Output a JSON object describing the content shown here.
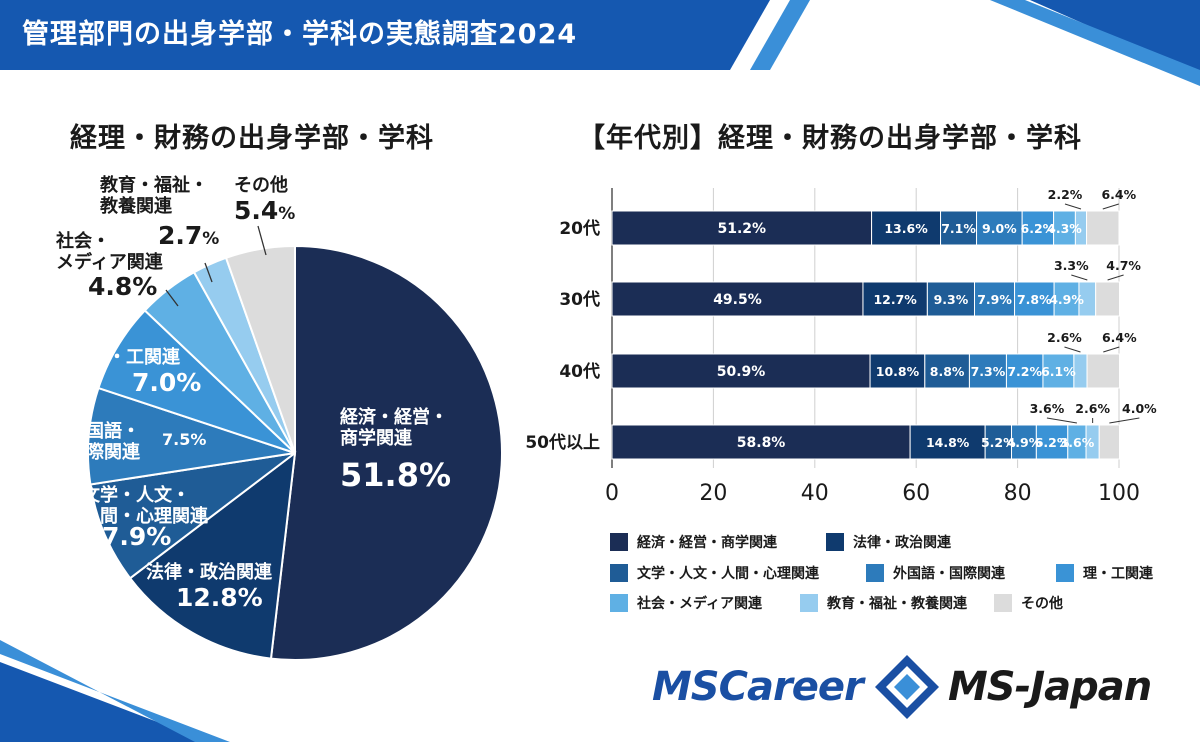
{
  "header": {
    "title": "管理部門の出身学部・学科の実態調査2024"
  },
  "colors": {
    "banner": "#1558b0",
    "keizai": "#1b2d55",
    "hou": "#0f3a6e",
    "bungaku": "#1f5c96",
    "gaikokugo": "#2d7bbb",
    "rikou": "#3a93d6",
    "shakai": "#5fb0e4",
    "kyouiku": "#96ccef",
    "sonota": "#dcdcdc"
  },
  "left_title": "経理・財務の出身学部・学科",
  "right_title": "【年代別】経理・財務の出身学部・学科",
  "pie_labels": {
    "keizai": {
      "line1": "経済・経営・",
      "line2": "商学関連",
      "value": "51.8%"
    },
    "hou": {
      "line1": "法律・政治関連",
      "value": "12.8%"
    },
    "bungaku": {
      "line1": "文学・人文・",
      "line2": "人間・心理関連",
      "value": "7.9%"
    },
    "gaikokugo": {
      "line1": "外国語・",
      "line2": "国際関連",
      "value": "7.5%"
    },
    "rikou": {
      "line1": "理・工関連",
      "value": "7.0%"
    },
    "shakai": {
      "line1": "社会・",
      "line2": "メディア関連",
      "value": "4.8%",
      "pct": "%"
    },
    "kyouiku": {
      "line1": "教育・福祉・",
      "line2": "教養関連",
      "value": "2.7",
      "pct": "%"
    },
    "sonota": {
      "line1": "その他",
      "value": "5.4",
      "pct": "%"
    }
  },
  "chart_data": [
    {
      "type": "pie",
      "title": "経理・財務の出身学部・学科",
      "categories": [
        "経済・経営・商学関連",
        "法律・政治関連",
        "文学・人文・人間・心理関連",
        "外国語・国際関連",
        "理・工関連",
        "社会・メディア関連",
        "教育・福祉・教養関連",
        "その他"
      ],
      "values": [
        51.8,
        12.8,
        7.9,
        7.5,
        7.0,
        4.8,
        2.7,
        5.4
      ],
      "colors": [
        "#1b2d55",
        "#0f3a6e",
        "#1f5c96",
        "#2d7bbb",
        "#3a93d6",
        "#5fb0e4",
        "#96ccef",
        "#dcdcdc"
      ]
    },
    {
      "type": "bar",
      "orientation": "horizontal",
      "stacked": true,
      "title": "【年代別】経理・財務の出身学部・学科",
      "categories": [
        "20代",
        "30代",
        "40代",
        "50代以上"
      ],
      "xlim": [
        0,
        100
      ],
      "xticks": [
        "0",
        "20",
        "40",
        "60",
        "80",
        "100"
      ],
      "legend_position": "bottom",
      "series": [
        {
          "name": "経済・経営・商学関連",
          "color": "#1b2d55",
          "values": [
            51.2,
            49.5,
            50.9,
            58.8
          ],
          "labels": [
            "51.2%",
            "49.5%",
            "50.9%",
            "58.8%"
          ]
        },
        {
          "name": "法律・政治関連",
          "color": "#0f3a6e",
          "values": [
            13.6,
            12.7,
            10.8,
            14.8
          ],
          "labels": [
            "13.6%",
            "12.7%",
            "10.8%",
            "14.8%"
          ]
        },
        {
          "name": "文学・人文・人間・心理関連",
          "color": "#1f5c96",
          "values": [
            7.1,
            9.3,
            8.8,
            5.2
          ],
          "labels": [
            "7.1%",
            "9.3%",
            "8.8%",
            "5.2%"
          ]
        },
        {
          "name": "外国語・国際関連",
          "color": "#2d7bbb",
          "values": [
            9.0,
            7.9,
            7.3,
            4.9
          ],
          "labels": [
            "9.0%",
            "7.9%",
            "7.3%",
            "4.9%"
          ]
        },
        {
          "name": "理・工関連",
          "color": "#3a93d6",
          "values": [
            6.2,
            7.8,
            7.2,
            6.2
          ],
          "labels": [
            "6.2%",
            "7.8%",
            "7.2%",
            "6.2%"
          ]
        },
        {
          "name": "社会・メディア関連",
          "color": "#5fb0e4",
          "values": [
            4.3,
            4.9,
            6.1,
            3.6
          ],
          "labels": [
            "4.3%",
            "4.9%",
            "6.1%",
            "3.6%"
          ]
        },
        {
          "name": "教育・福祉・教養関連",
          "color": "#96ccef",
          "values": [
            2.2,
            3.3,
            2.6,
            2.6
          ],
          "labels": [
            "2.2%",
            "3.3%",
            "2.6%",
            "2.6%"
          ]
        },
        {
          "name": "その他",
          "color": "#dcdcdc",
          "values": [
            6.4,
            4.7,
            6.4,
            4.0
          ],
          "labels": [
            "6.4%",
            "4.7%",
            "6.4%",
            "4.0%"
          ]
        }
      ]
    }
  ],
  "legend": [
    "経済・経営・商学関連",
    "法律・政治関連",
    "文学・人文・人間・心理関連",
    "外国語・国際関連",
    "理・工関連",
    "社会・メディア関連",
    "教育・福祉・教養関連",
    "その他"
  ],
  "logos": {
    "mscareer": "MSCareer",
    "msjapan": "MS-Japan"
  }
}
